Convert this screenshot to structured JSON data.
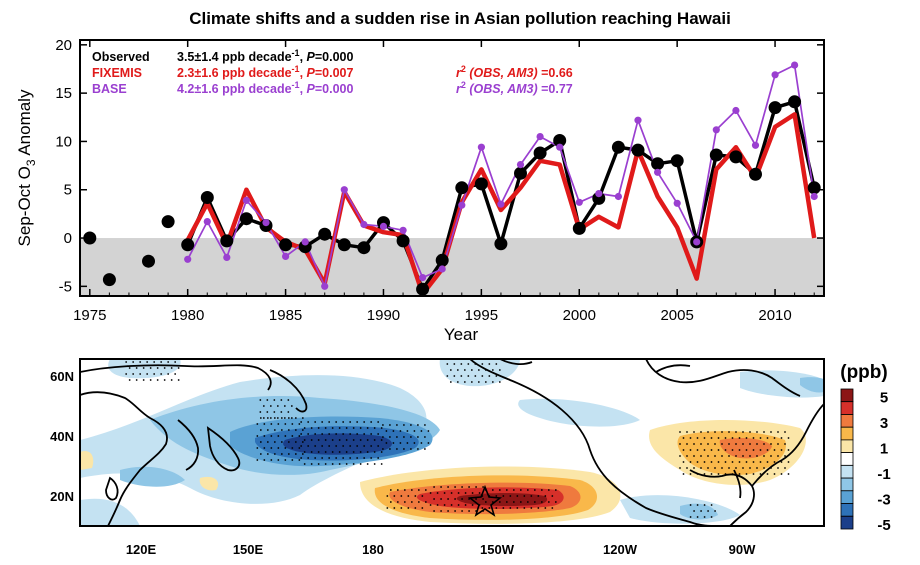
{
  "title": "Climate shifts and a sudden rise in Asian pollution reaching Hawaii",
  "chart_data": [
    {
      "type": "line",
      "xlabel": "Year",
      "ylabel_parts": [
        "Sep-Oct O",
        "3",
        " Anomaly"
      ],
      "xlim": [
        1974.5,
        2012.5
      ],
      "ylim": [
        -6,
        20.5
      ],
      "xticks": [
        "1975",
        "1980",
        "1985",
        "1990",
        "1995",
        "2000",
        "2005",
        "2010"
      ],
      "yticks": [
        "20",
        "15",
        "10",
        "5",
        "0",
        "-5"
      ],
      "negative_region_shading": "#d3d3d3",
      "legend": [
        {
          "name": "Observed",
          "stat": "3.5±1.4 ppb decade",
          "sup": "-1",
          "p_label": "P",
          "p_value": "=0.000",
          "color": "#000000"
        },
        {
          "name": "FIXEMIS",
          "stat": "2.3±1.6 ppb decade",
          "sup": "-1",
          "p_label": "P",
          "p_value": "=0.007",
          "color": "#e01a1a"
        },
        {
          "name": "BASE",
          "stat": "4.2±1.6 ppb decade",
          "sup": "-1",
          "p_label": "P",
          "p_value": "=0.000",
          "color": "#9a3fd0"
        }
      ],
      "correlations": [
        {
          "r": "r",
          "sup": "2",
          "paren": " (OBS, AM3)",
          "value": " =0.66",
          "color": "#e01a1a"
        },
        {
          "r": "r",
          "sup": "2",
          "paren": " (OBS, AM3)",
          "value": " =0.77",
          "color": "#9a3fd0"
        }
      ],
      "series": [
        {
          "name": "Observed",
          "color": "#000000",
          "x": [
            1975,
            1976,
            1978,
            1979,
            1980,
            1981,
            1982,
            1983,
            1984,
            1985,
            1986,
            1987,
            1988,
            1989,
            1990,
            1991,
            1992,
            1993,
            1994,
            1995,
            1996,
            1997,
            1998,
            1999,
            2000,
            2001,
            2002,
            2003,
            2004,
            2005,
            2006,
            2007,
            2008,
            2009,
            2010,
            2011,
            2012
          ],
          "values": [
            0.0,
            -4.3,
            -2.4,
            1.7,
            -0.7,
            4.2,
            -0.3,
            2.0,
            1.3,
            -0.7,
            -0.9,
            0.4,
            -0.7,
            -1.0,
            1.6,
            -0.3,
            -5.3,
            -2.3,
            5.2,
            5.6,
            -0.6,
            6.7,
            8.8,
            10.1,
            1.0,
            4.1,
            9.4,
            9.1,
            7.7,
            8.0,
            -0.4,
            8.6,
            8.4,
            6.6,
            13.5,
            14.1,
            5.2
          ]
        },
        {
          "name": "FIXEMIS",
          "color": "#e01a1a",
          "x": [
            1980,
            1981,
            1982,
            1983,
            1984,
            1985,
            1986,
            1987,
            1988,
            1989,
            1990,
            1991,
            1992,
            1993,
            1994,
            1995,
            1996,
            1997,
            1998,
            1999,
            2000,
            2001,
            2002,
            2003,
            2004,
            2005,
            2006,
            2007,
            2008,
            2009,
            2010,
            2011,
            2012
          ],
          "values": [
            -0.2,
            3.6,
            -0.7,
            5.0,
            1.1,
            -0.4,
            -1.2,
            -4.7,
            4.8,
            1.3,
            0.6,
            0.3,
            -5.8,
            -3.2,
            3.7,
            7.1,
            2.9,
            5.2,
            8.0,
            7.6,
            0.9,
            2.2,
            1.1,
            9.1,
            4.3,
            1.1,
            -4.2,
            7.1,
            9.4,
            6.2,
            11.5,
            12.8,
            0.0
          ]
        },
        {
          "name": "BASE",
          "color": "#9a3fd0",
          "x": [
            1980,
            1981,
            1982,
            1983,
            1984,
            1985,
            1986,
            1987,
            1988,
            1989,
            1990,
            1991,
            1992,
            1993,
            1994,
            1995,
            1996,
            1997,
            1998,
            1999,
            2000,
            2001,
            2002,
            2003,
            2004,
            2005,
            2006,
            2007,
            2008,
            2009,
            2010,
            2011,
            2012
          ],
          "values": [
            -2.2,
            1.7,
            -2.0,
            3.9,
            1.6,
            -1.9,
            -0.4,
            -5.0,
            5.0,
            1.4,
            1.2,
            0.8,
            -4.1,
            -3.2,
            3.4,
            9.4,
            3.5,
            7.6,
            10.5,
            9.4,
            3.7,
            4.6,
            4.3,
            12.2,
            6.8,
            3.6,
            -0.4,
            11.2,
            13.2,
            9.6,
            16.9,
            17.9,
            4.3
          ]
        }
      ]
    },
    {
      "type": "heatmap",
      "xticks": [
        "120E",
        "150E",
        "180",
        "150W",
        "120W",
        "90W"
      ],
      "yticks": [
        "60N",
        "40N",
        "20N"
      ],
      "colorbar": {
        "unit": "(ppb)",
        "labels": [
          "5",
          "3",
          "1",
          "-1",
          "-3",
          "-5"
        ],
        "colors": [
          "#8c1616",
          "#d6302a",
          "#ef7a3e",
          "#f9b84a",
          "#fbe6a8",
          "#ffffff",
          "#c4e2f2",
          "#8fc6e6",
          "#5aa2d4",
          "#2e72b8",
          "#1b3f8a"
        ]
      },
      "features": [
        "positive anomaly south of Hawaii near 20N, 180-135W",
        "negative anomaly near 35N, 140E-170E",
        "positive anomaly over southeastern United States",
        "stippling marks significant grid cells",
        "star marks Mauna Loa, Hawaii"
      ]
    }
  ]
}
